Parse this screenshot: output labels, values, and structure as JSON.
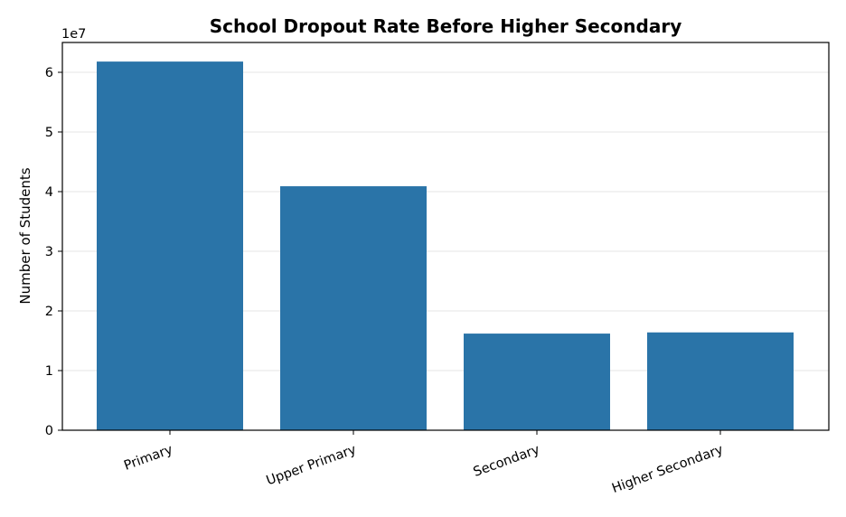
{
  "chart_data": {
    "type": "bar",
    "title": "School Dropout Rate Before Higher Secondary",
    "xlabel": "",
    "ylabel": "Number of Students",
    "categories": [
      "Primary",
      "Upper Primary",
      "Secondary",
      "Higher Secondary"
    ],
    "values": [
      61800000,
      40900000,
      16200000,
      16400000
    ],
    "ylim": [
      0,
      65000000
    ],
    "yticks": [
      0,
      10000000,
      20000000,
      30000000,
      40000000,
      50000000,
      60000000
    ],
    "ytick_labels": [
      "0",
      "1",
      "2",
      "3",
      "4",
      "5",
      "6"
    ],
    "y_offset_label": "1e7",
    "grid": "y",
    "bar_color": "#2a74a8",
    "grid_color": "#e6e6e6",
    "axis_color": "#000000"
  }
}
